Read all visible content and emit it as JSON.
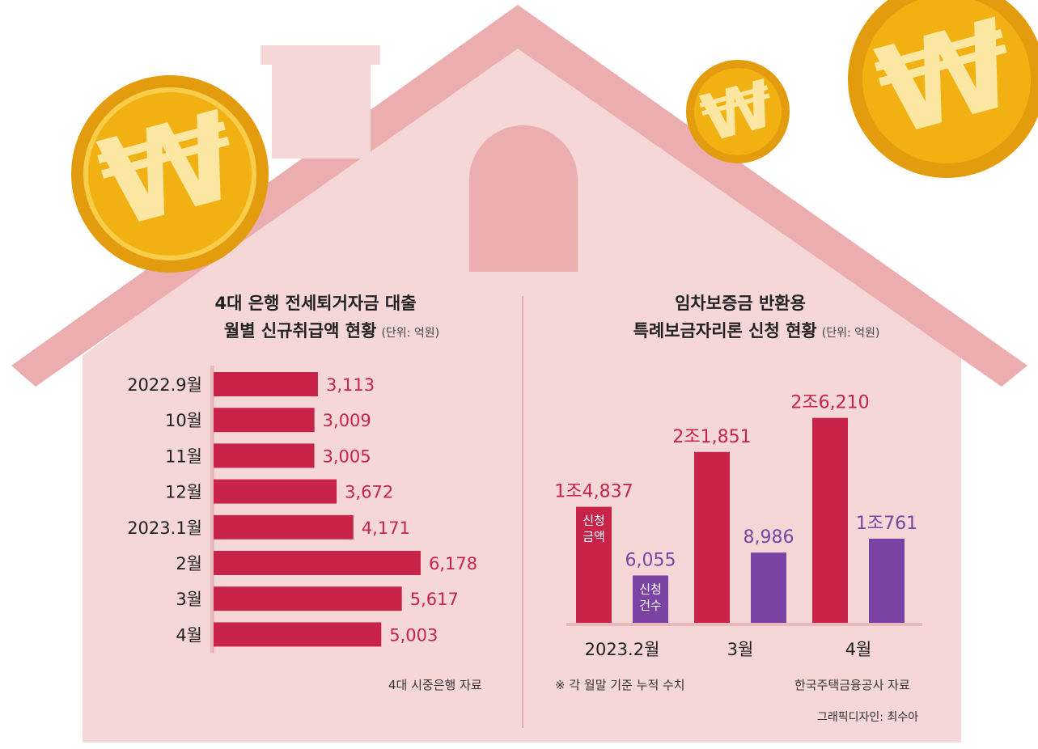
{
  "colors": {
    "background": "#ffffff",
    "house": "#f6d7d8",
    "roof": "#ecadaf",
    "amount": "#c8244a",
    "count": "#7b43a3",
    "coin": "#f2b112"
  },
  "icons": [
    "won-coin-icon",
    "house-illustration"
  ],
  "left": {
    "title_line1": "4대 은행 전세퇴거자금 대출",
    "title_line2": "월별 신규취급액 현황",
    "unit": "(단위: 억원)",
    "source": "4대 시중은행 자료"
  },
  "right": {
    "title_line1": "임차보증금 반환용",
    "title_line2": "특례보금자리론 신청 현황",
    "unit": "(단위: 억원)",
    "note": "※ 각 월말 기준 누적 수치",
    "source": "한국주택금융공사 자료",
    "credit": "그래픽디자인: 최수아"
  },
  "coin_symbol": "₩",
  "chart_data": [
    {
      "type": "bar",
      "orientation": "horizontal",
      "title": "4대 은행 전세퇴거자금 대출 월별 신규취급액 현황",
      "unit": "(단위: 억원)",
      "categories": [
        "2022.9월",
        "10월",
        "11월",
        "12월",
        "2023.1월",
        "2월",
        "3월",
        "4월"
      ],
      "values": [
        3113,
        3009,
        3005,
        3672,
        4171,
        6178,
        5617,
        5003
      ],
      "value_labels": [
        "3,113",
        "3,009",
        "3,005",
        "3,672",
        "4,171",
        "6,178",
        "5,617",
        "5,003"
      ],
      "xlim": [
        0,
        7000
      ],
      "grid": false
    },
    {
      "type": "bar",
      "orientation": "vertical",
      "title": "임차보증금 반환용 특례보금자리론 신청 현황",
      "unit": "(단위: 억원)",
      "categories": [
        "2023.2월",
        "3월",
        "4월"
      ],
      "series": [
        {
          "name": "신청 금액",
          "values": [
            14837,
            21851,
            26210
          ],
          "value_labels": [
            "1조4,837",
            "2조1,851",
            "2조6,210"
          ]
        },
        {
          "name": "신청 건수",
          "values": [
            6055,
            8986,
            10761
          ],
          "value_labels": [
            "6,055",
            "8,986",
            "1조761"
          ]
        }
      ],
      "ylim": [
        0,
        30000
      ],
      "grid": false
    }
  ]
}
